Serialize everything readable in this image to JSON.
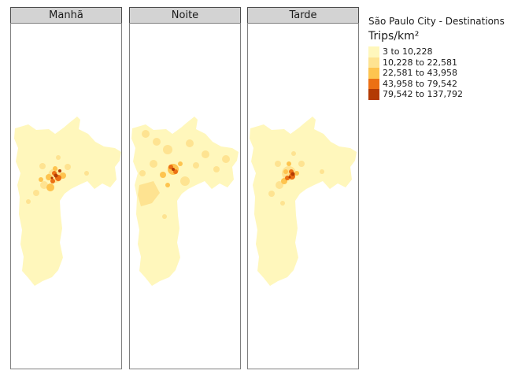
{
  "legend": {
    "title": "São Paulo City - Destinations",
    "subtitle": "Trips/km²",
    "items": [
      {
        "label": "3 to 10,228",
        "color": "#fff7bc"
      },
      {
        "label": "10,228 to 22,581",
        "color": "#fee391"
      },
      {
        "label": "22,581 to 43,958",
        "color": "#fec44f"
      },
      {
        "label": "43,958 to 79,542",
        "color": "#ec7014"
      },
      {
        "label": "79,542 to 137,792",
        "color": "#b33a03"
      }
    ]
  },
  "panels": [
    {
      "label": "Manhã"
    },
    {
      "label": "Noite"
    },
    {
      "label": "Tarde"
    }
  ]
}
